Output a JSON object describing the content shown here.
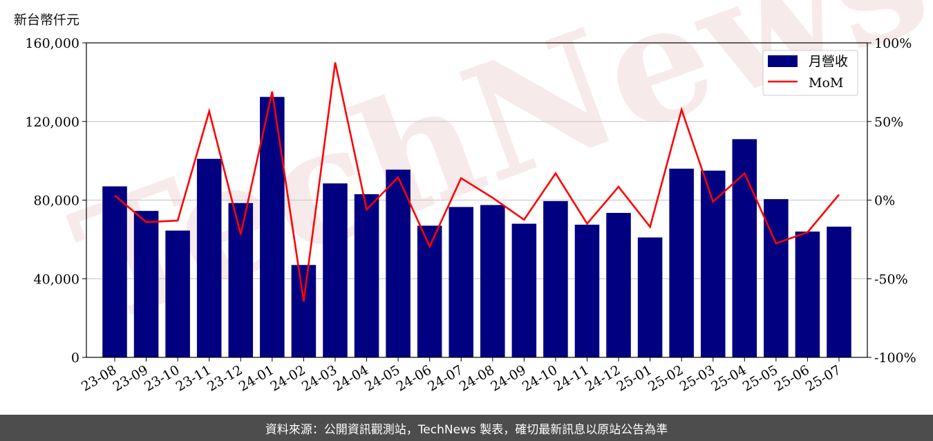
{
  "unit_label": "新台幣仟元",
  "footer": "資料來源：公開資訊觀測站，TechNews 製表，確切最新訊息以原站公告為準",
  "watermark": "TechNews",
  "colors": {
    "bar": "#000080",
    "line": "#ff0000",
    "watermark": "#f2dada"
  },
  "chart_data": {
    "type": "bar",
    "title": "",
    "categories": [
      "23-08",
      "23-09",
      "23-10",
      "23-11",
      "23-12",
      "24-01",
      "24-02",
      "24-03",
      "24-04",
      "24-05",
      "24-06",
      "24-07",
      "24-08",
      "24-09",
      "24-10",
      "24-11",
      "24-12",
      "25-01",
      "25-02",
      "25-03",
      "25-04",
      "25-05",
      "25-06",
      "25-07"
    ],
    "series": [
      {
        "name": "月營收",
        "type": "bar",
        "axis": "left",
        "values": [
          87000,
          74500,
          64500,
          101000,
          78500,
          132500,
          47000,
          88500,
          83000,
          95500,
          67000,
          76500,
          77500,
          68000,
          79500,
          67500,
          73500,
          61000,
          96000,
          95000,
          111000,
          80500,
          64000,
          66500
        ]
      },
      {
        "name": "MoM",
        "type": "line",
        "axis": "right",
        "values": [
          3.0,
          -14.0,
          -13.0,
          56.5,
          -22.0,
          69.0,
          -64.5,
          87.5,
          -6.0,
          14.5,
          -29.5,
          14.0,
          1.5,
          -12.5,
          17.0,
          -15.0,
          8.5,
          -17.0,
          57.5,
          -1.0,
          17.0,
          -27.5,
          -20.5,
          3.5
        ]
      }
    ],
    "y_left": {
      "min": 0,
      "max": 160000,
      "ticks": [
        "0",
        "40,000",
        "80,000",
        "120,000",
        "160,000"
      ],
      "tick_values": [
        0,
        40000,
        80000,
        120000,
        160000
      ]
    },
    "y_right": {
      "min": -100,
      "max": 100,
      "ticks": [
        "-100%",
        "-50%",
        "0%",
        "50%",
        "100%"
      ],
      "tick_values": [
        -100,
        -50,
        0,
        50,
        100
      ]
    },
    "grid": true,
    "legend": {
      "position": "top-right",
      "entries": [
        "月營收",
        "MoM"
      ]
    }
  }
}
